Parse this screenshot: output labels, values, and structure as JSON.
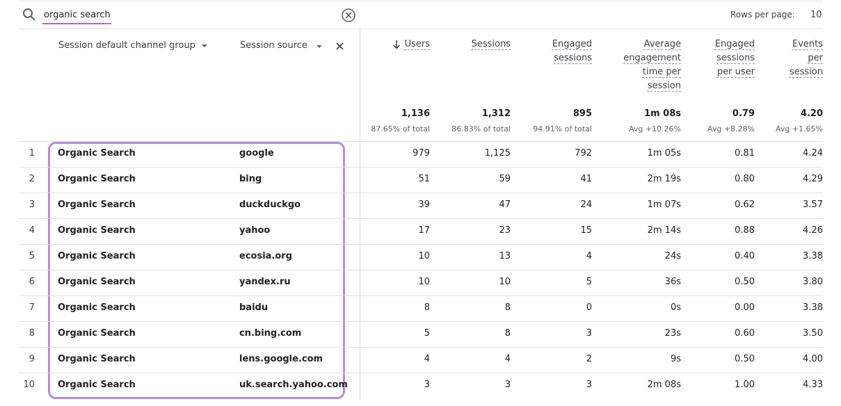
{
  "search": {
    "query": "organic search"
  },
  "pagination": {
    "label": "Rows per page:",
    "value": "10"
  },
  "table": {
    "dimension_headers": [
      "Session default channel group",
      "Session source"
    ],
    "metric_headers": [
      "Users",
      "Sessions",
      "Engaged sessions",
      "Average engagement time per session",
      "Engaged sessions per user",
      "Events per session"
    ],
    "totals": [
      {
        "value": "1,136",
        "note": "87.65% of total"
      },
      {
        "value": "1,312",
        "note": "86.83% of total"
      },
      {
        "value": "895",
        "note": "94.91% of total"
      },
      {
        "value": "1m 08s",
        "note": "Avg +10.26%"
      },
      {
        "value": "0.79",
        "note": "Avg +8.28%"
      },
      {
        "value": "4.20",
        "note": "Avg +1.65%"
      }
    ],
    "rows": [
      [
        "1",
        "Organic Search",
        "google",
        "979",
        "1,125",
        "792",
        "1m 05s",
        "0.81",
        "4.24"
      ],
      [
        "2",
        "Organic Search",
        "bing",
        "51",
        "59",
        "41",
        "2m 19s",
        "0.80",
        "4.29"
      ],
      [
        "3",
        "Organic Search",
        "duckduckgo",
        "39",
        "47",
        "24",
        "1m 07s",
        "0.62",
        "3.57"
      ],
      [
        "4",
        "Organic Search",
        "yahoo",
        "17",
        "23",
        "15",
        "2m 14s",
        "0.88",
        "4.26"
      ],
      [
        "5",
        "Organic Search",
        "ecosia.org",
        "10",
        "13",
        "4",
        "24s",
        "0.40",
        "3.38"
      ],
      [
        "6",
        "Organic Search",
        "yandex.ru",
        "10",
        "10",
        "5",
        "36s",
        "0.50",
        "3.80"
      ],
      [
        "7",
        "Organic Search",
        "baidu",
        "8",
        "8",
        "0",
        "0s",
        "0.00",
        "3.38"
      ],
      [
        "8",
        "Organic Search",
        "cn.bing.com",
        "5",
        "8",
        "3",
        "23s",
        "0.60",
        "3.50"
      ],
      [
        "9",
        "Organic Search",
        "lens.google.com",
        "4",
        "4",
        "2",
        "9s",
        "0.50",
        "4.00"
      ],
      [
        "10",
        "Organic Search",
        "uk.search.yahoo.com",
        "3",
        "3",
        "3",
        "2m 08s",
        "1.00",
        "4.33"
      ]
    ]
  }
}
